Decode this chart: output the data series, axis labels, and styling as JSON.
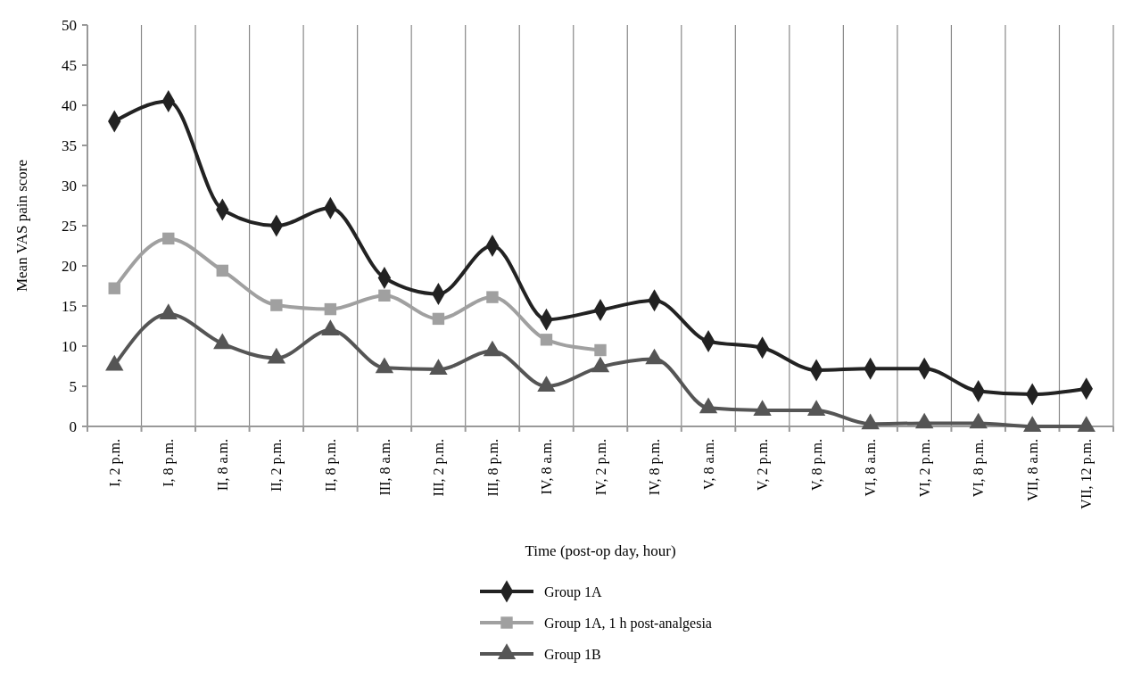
{
  "chart_data": {
    "type": "line",
    "xlabel": "Time (post-op day, hour)",
    "ylabel": "Mean VAS pain score",
    "categories": [
      "I, 2 p.m.",
      "I, 8 p.m.",
      "II, 8 a.m.",
      "II, 2 p.m.",
      "II, 8 p.m.",
      "III, 8 a.m.",
      "III, 2 p.m.",
      "III, 8 p.m.",
      "IV, 8 a.m.",
      "IV, 2 p.m.",
      "IV, 8 p.m.",
      "V, 8 a.m.",
      "V, 2 p.m.",
      "V, 8 p.m.",
      "VI, 8 a.m.",
      "VI, 2 p.m.",
      "VI, 8 p.m.",
      "VII, 8 a.m.",
      "VII, 12 p.m."
    ],
    "series": [
      {
        "name": "Group 1A",
        "color": "#222222",
        "marker": "diamond",
        "values": [
          38,
          40.5,
          27,
          25,
          27.2,
          18.5,
          16.5,
          22.5,
          13.3,
          14.5,
          15.7,
          10.6,
          9.8,
          7,
          7.2,
          7.2,
          4.4,
          4,
          4.7
        ]
      },
      {
        "name": "Group 1A, 1 h post-analgesia",
        "color": "#a0a0a0",
        "marker": "square",
        "values": [
          17.2,
          23.4,
          19.4,
          15.1,
          14.6,
          16.3,
          13.4,
          16.1,
          10.8,
          9.5,
          null,
          null,
          null,
          null,
          null,
          null,
          null,
          null,
          null
        ]
      },
      {
        "name": "Group 1B",
        "color": "#555555",
        "marker": "triangle",
        "values": [
          7.6,
          14,
          10.3,
          8.5,
          12,
          7.3,
          7.1,
          9.4,
          5,
          7.4,
          8.4,
          2.3,
          2,
          2,
          0.3,
          0.4,
          0.4,
          0,
          0
        ]
      }
    ],
    "ylim": [
      0,
      50
    ],
    "yticks": [
      0,
      5,
      10,
      15,
      20,
      25,
      30,
      35,
      40,
      45,
      50
    ],
    "grid": "x",
    "legend": "bottom",
    "line_style": "solid"
  }
}
